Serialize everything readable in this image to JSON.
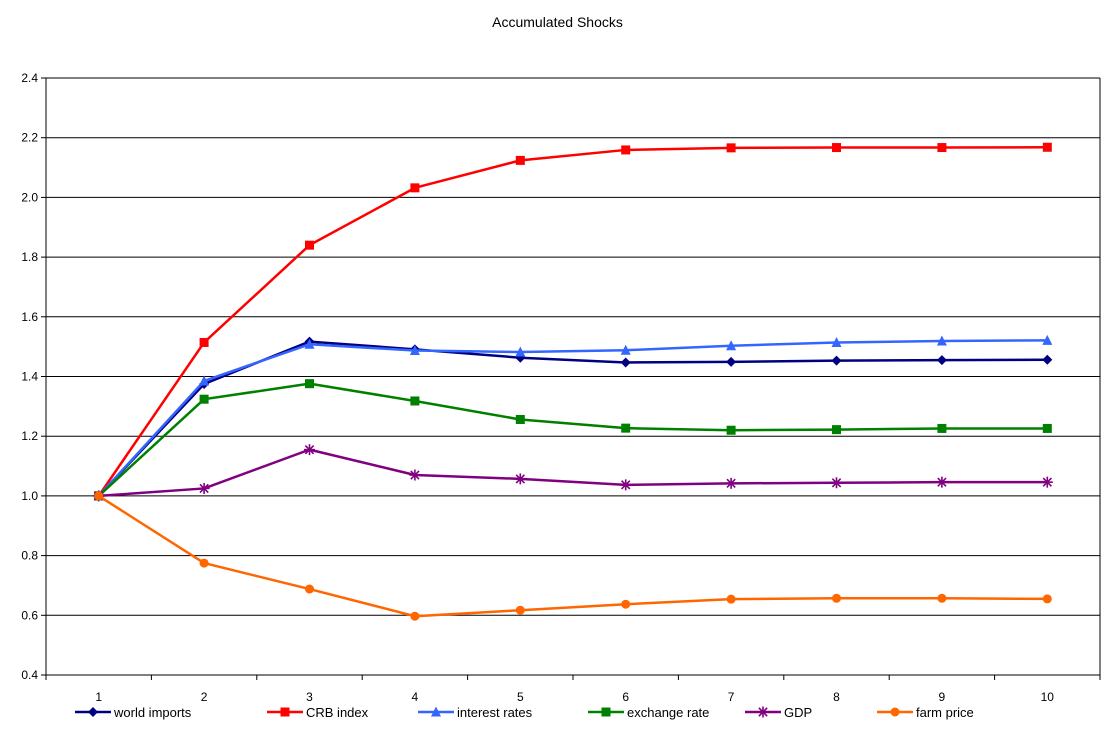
{
  "chart_data": {
    "type": "line",
    "title": "Accumulated Shocks",
    "xlabel": "",
    "ylabel": "",
    "categories": [
      "1",
      "2",
      "3",
      "4",
      "5",
      "6",
      "7",
      "8",
      "9",
      "10"
    ],
    "ylim": [
      0.4,
      2.4
    ],
    "yticks": [
      "0.4",
      "0.6",
      "0.8",
      "1.0",
      "1.2",
      "1.4",
      "1.6",
      "1.8",
      "2.0",
      "2.2",
      "2.4"
    ],
    "grid": true,
    "legend_position": "bottom",
    "series": [
      {
        "name": "world imports",
        "color": "#000080",
        "marker": "diamond",
        "values": [
          1.0,
          1.375,
          1.517,
          1.491,
          1.463,
          1.447,
          1.449,
          1.453,
          1.455,
          1.456
        ]
      },
      {
        "name": "CRB index",
        "color": "#ff0000",
        "marker": "square",
        "values": [
          1.0,
          1.514,
          1.84,
          2.032,
          2.124,
          2.159,
          2.166,
          2.167,
          2.167,
          2.168
        ]
      },
      {
        "name": "interest rates",
        "color": "#3366ff",
        "marker": "triangle",
        "values": [
          1.0,
          1.385,
          1.508,
          1.487,
          1.482,
          1.488,
          1.503,
          1.514,
          1.519,
          1.521
        ]
      },
      {
        "name": "exchange rate",
        "color": "#008000",
        "marker": "square",
        "values": [
          1.0,
          1.324,
          1.376,
          1.318,
          1.256,
          1.227,
          1.22,
          1.222,
          1.226,
          1.226
        ]
      },
      {
        "name": "GDP",
        "color": "#800080",
        "marker": "asterisk",
        "values": [
          1.0,
          1.025,
          1.155,
          1.07,
          1.057,
          1.037,
          1.042,
          1.044,
          1.046,
          1.046
        ]
      },
      {
        "name": "farm price",
        "color": "#ff6600",
        "marker": "circle",
        "values": [
          1.0,
          0.775,
          0.688,
          0.597,
          0.617,
          0.637,
          0.654,
          0.657,
          0.657,
          0.655
        ]
      }
    ]
  }
}
